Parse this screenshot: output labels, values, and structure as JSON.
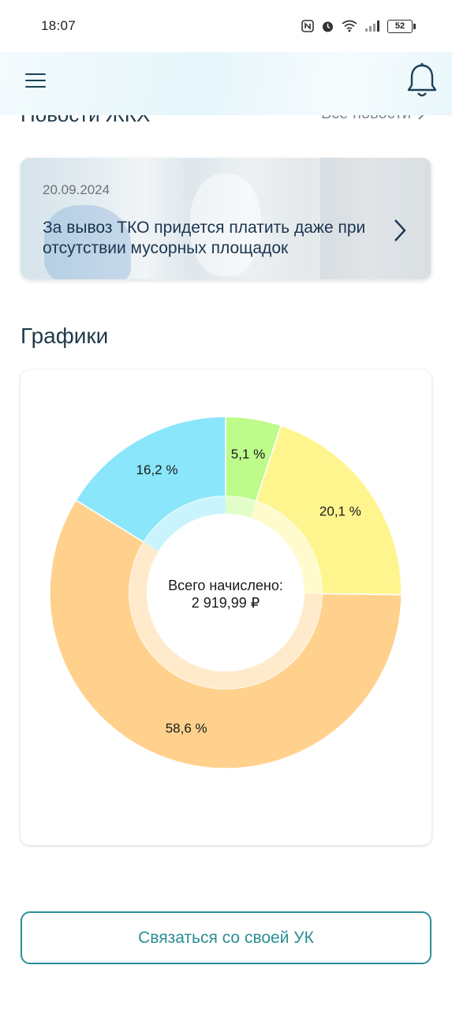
{
  "status_bar": {
    "time": "18:07",
    "battery": "52"
  },
  "header": {
    "menu_icon": "hamburger-menu-icon",
    "bell_icon": "bell-icon"
  },
  "news": {
    "title": "Новости ЖКХ",
    "all_news_label": "Все новости",
    "card": {
      "date": "20.09.2024",
      "headline": "За вывоз ТКО придется платить даже при отсутствии мусорных площадок"
    }
  },
  "charts": {
    "title": "Графики",
    "center_label_line1": "Всего начислено:",
    "center_label_line2": "2 919,99 ₽"
  },
  "chart_data": {
    "type": "pie",
    "donut": true,
    "slices": [
      {
        "label": "5,1 %",
        "value": 5.1,
        "color": "#bdfb8a"
      },
      {
        "label": "20,1 %",
        "value": 20.1,
        "color": "#fff58f"
      },
      {
        "label": "58,6 %",
        "value": 58.6,
        "color": "#ffd18c"
      },
      {
        "label": "16,2 %",
        "value": 16.2,
        "color": "#8ae6fb"
      }
    ]
  },
  "contact_button": {
    "label": "Связаться со своей УК"
  },
  "colors": {
    "accent": "#2a8f95",
    "text_dark": "#1f3a4a"
  }
}
